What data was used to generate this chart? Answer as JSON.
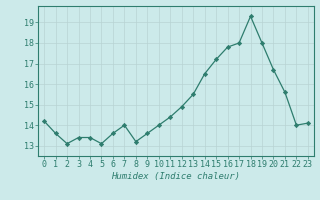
{
  "x": [
    0,
    1,
    2,
    3,
    4,
    5,
    6,
    7,
    8,
    9,
    10,
    11,
    12,
    13,
    14,
    15,
    16,
    17,
    18,
    19,
    20,
    21,
    22,
    23
  ],
  "y": [
    14.2,
    13.6,
    13.1,
    13.4,
    13.4,
    13.1,
    13.6,
    14.0,
    13.2,
    13.6,
    14.0,
    14.4,
    14.9,
    15.5,
    16.5,
    17.2,
    17.8,
    18.0,
    19.3,
    18.0,
    16.7,
    15.6,
    14.0,
    14.1
  ],
  "line_color": "#2e7d6e",
  "marker": "D",
  "marker_size": 2.2,
  "bg_color": "#cceaea",
  "grid_major_color": "#b8d4d4",
  "grid_minor_color": "#c8e2e2",
  "xlabel": "Humidex (Indice chaleur)",
  "ylim": [
    12.5,
    19.8
  ],
  "xlim": [
    -0.5,
    23.5
  ],
  "yticks": [
    13,
    14,
    15,
    16,
    17,
    18,
    19
  ],
  "xticks": [
    0,
    1,
    2,
    3,
    4,
    5,
    6,
    7,
    8,
    9,
    10,
    11,
    12,
    13,
    14,
    15,
    16,
    17,
    18,
    19,
    20,
    21,
    22,
    23
  ],
  "axis_color": "#2e7d6e",
  "tick_color": "#2e7d6e",
  "label_color": "#2e7d6e",
  "xlabel_fontsize": 6.5,
  "ytick_fontsize": 6.5,
  "xtick_fontsize": 5.5
}
